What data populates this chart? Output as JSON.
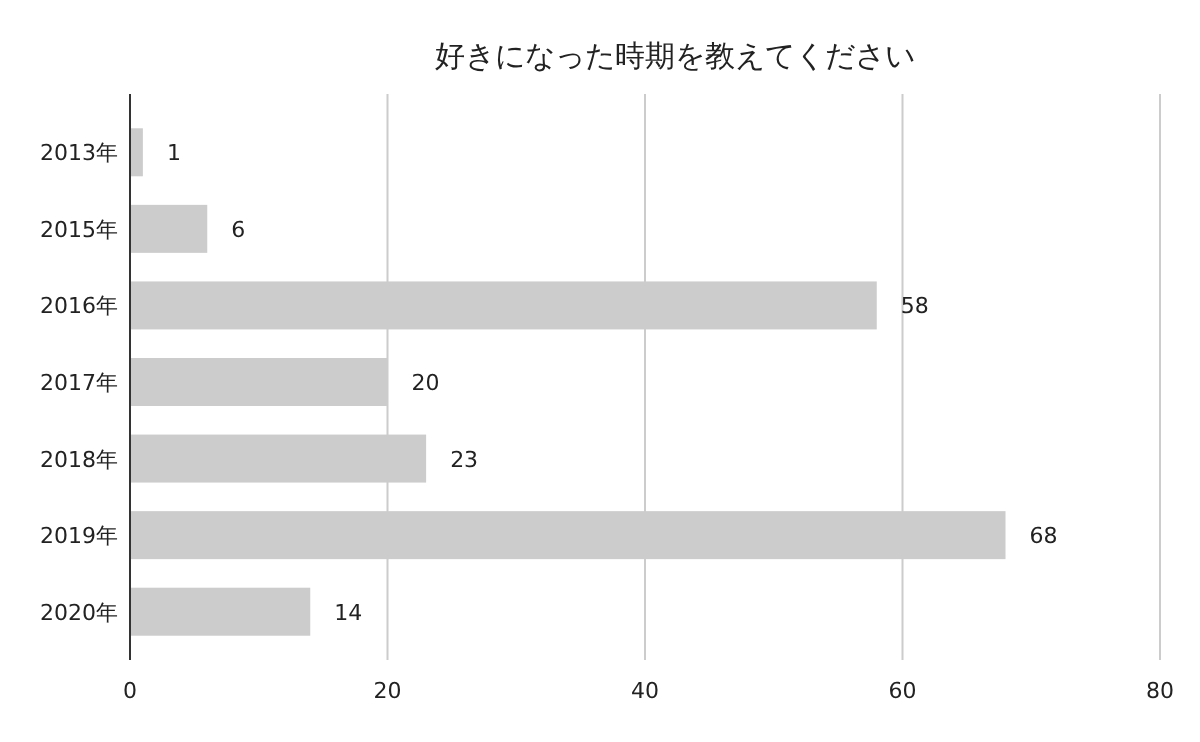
{
  "chart_data": {
    "type": "bar",
    "title": "好きになった時期を教えてください",
    "orientation": "horizontal",
    "categories": [
      "2013年",
      "2015年",
      "2016年",
      "2017年",
      "2018年",
      "2019年",
      "2020年"
    ],
    "values": [
      1,
      6,
      58,
      20,
      23,
      68,
      14
    ],
    "color": "#cccccc",
    "xlim": [
      0,
      80
    ],
    "xticks": [
      0,
      20,
      40,
      60,
      80
    ],
    "grid": "x",
    "data_labels": true
  }
}
